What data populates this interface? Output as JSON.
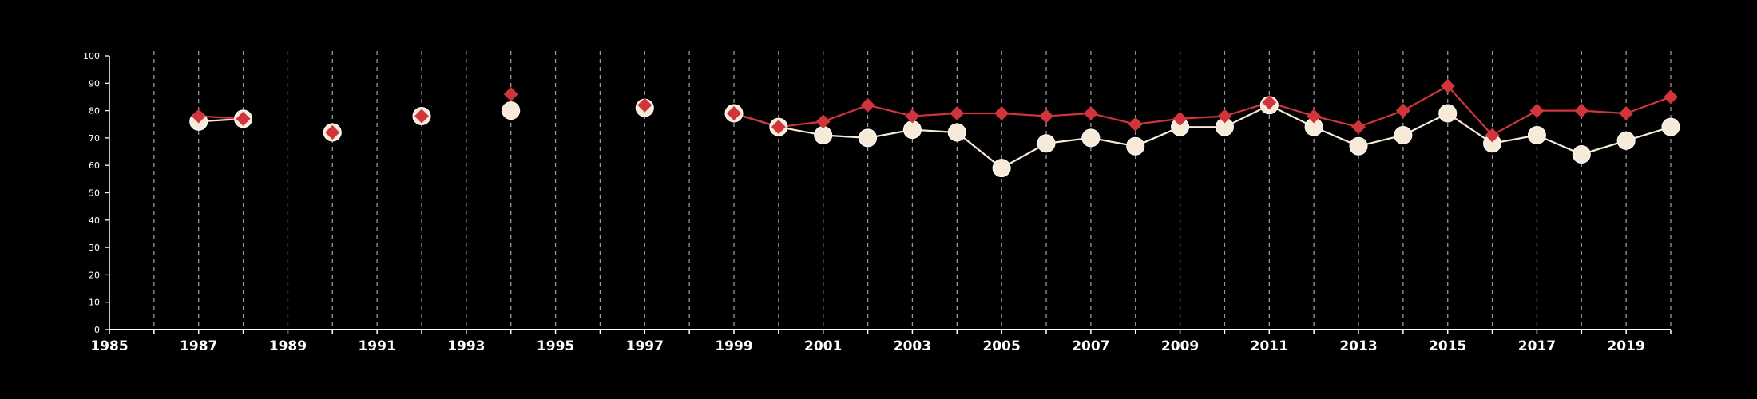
{
  "chart_data": {
    "type": "line",
    "title": "",
    "xlabel": "",
    "ylabel": "",
    "xlim": [
      1985,
      2020
    ],
    "ylim": [
      0,
      100
    ],
    "y_ticks": [
      "0",
      "10",
      "20",
      "30",
      "40",
      "50",
      "60",
      "70",
      "80",
      "90",
      "100"
    ],
    "x_ticks": [
      "1985",
      "1987",
      "1989",
      "1991",
      "1993",
      "1995",
      "1997",
      "1999",
      "2001",
      "2003",
      "2005",
      "2007",
      "2009",
      "2011",
      "2013",
      "2015",
      "2017",
      "2019"
    ],
    "grid": "vertical dashed lines at every year",
    "legend": "none",
    "colors": {
      "background": "#000000",
      "axis": "#ffffff",
      "grid": "#9a9a9a",
      "series_circle": "#f7ead8",
      "series_diamond": "#d0353c"
    },
    "series": [
      {
        "marker": "circle",
        "color": "#f7ead8",
        "points": [
          [
            1987,
            76
          ],
          [
            1988,
            77
          ],
          [
            1990,
            72
          ],
          [
            1992,
            78
          ],
          [
            1994,
            80
          ],
          [
            1997,
            81
          ],
          [
            1999,
            79
          ],
          [
            2000,
            74
          ],
          [
            2001,
            71
          ],
          [
            2002,
            70
          ],
          [
            2003,
            73
          ],
          [
            2004,
            72
          ],
          [
            2005,
            59
          ],
          [
            2006,
            68
          ],
          [
            2007,
            70
          ],
          [
            2008,
            67
          ],
          [
            2009,
            74
          ],
          [
            2010,
            74
          ],
          [
            2011,
            82
          ],
          [
            2012,
            74
          ],
          [
            2013,
            67
          ],
          [
            2014,
            71
          ],
          [
            2015,
            79
          ],
          [
            2016,
            68
          ],
          [
            2017,
            71
          ],
          [
            2018,
            64
          ],
          [
            2019,
            69
          ],
          [
            2020,
            74
          ]
        ]
      },
      {
        "marker": "diamond",
        "color": "#d0353c",
        "points": [
          [
            1987,
            78
          ],
          [
            1988,
            77
          ],
          [
            1990,
            72
          ],
          [
            1992,
            78
          ],
          [
            1994,
            86
          ],
          [
            1997,
            82
          ],
          [
            1999,
            79
          ],
          [
            2000,
            74
          ],
          [
            2001,
            76
          ],
          [
            2002,
            82
          ],
          [
            2003,
            78
          ],
          [
            2004,
            79
          ],
          [
            2005,
            79
          ],
          [
            2006,
            78
          ],
          [
            2007,
            79
          ],
          [
            2008,
            75
          ],
          [
            2009,
            77
          ],
          [
            2010,
            78
          ],
          [
            2011,
            83
          ],
          [
            2012,
            78
          ],
          [
            2013,
            74
          ],
          [
            2014,
            80
          ],
          [
            2015,
            89
          ],
          [
            2016,
            71
          ],
          [
            2017,
            80
          ],
          [
            2018,
            80
          ],
          [
            2019,
            79
          ],
          [
            2020,
            85
          ]
        ]
      }
    ]
  }
}
